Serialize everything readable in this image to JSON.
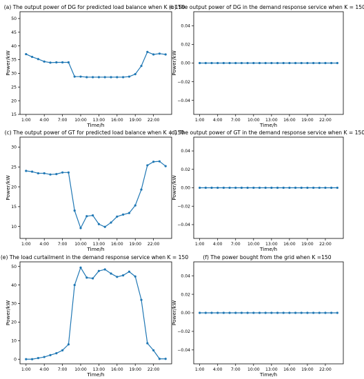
{
  "chart_data": [
    {
      "type": "line",
      "title": "(a) The output power of DG for predicted load balance when K = 150",
      "xlabel": "Time/h",
      "ylabel": "Power/kW",
      "x": [
        1,
        2,
        3,
        4,
        5,
        6,
        7,
        8,
        9,
        10,
        11,
        12,
        13,
        14,
        15,
        16,
        17,
        18,
        19,
        20,
        21,
        22,
        23,
        24
      ],
      "x_ticks": [
        1,
        4,
        7,
        10,
        13,
        16,
        19,
        22
      ],
      "x_tick_labels": [
        "1:00",
        "4:00",
        "7:00",
        "10:00",
        "13:00",
        "16:00",
        "19:00",
        "22:00"
      ],
      "xlim": [
        0,
        25
      ],
      "ylim": [
        15,
        52.5
      ],
      "y_ticks": [
        15,
        20,
        25,
        30,
        35,
        40,
        45,
        50
      ],
      "y_tick_labels": [
        "15",
        "20",
        "25",
        "30",
        "35",
        "40",
        "45",
        "50"
      ],
      "grid": false,
      "series": [
        {
          "color": "#1f77b4",
          "values": [
            37.0,
            36.0,
            35.2,
            34.3,
            33.9,
            34.0,
            34.0,
            34.0,
            28.8,
            28.8,
            28.6,
            28.6,
            28.6,
            28.6,
            28.6,
            28.6,
            28.6,
            28.8,
            29.7,
            32.7,
            37.8,
            36.9,
            37.2,
            36.9
          ]
        }
      ]
    },
    {
      "type": "line",
      "title": "(b) The output power of DG in the demand response service when K = 150",
      "xlabel": "Time/h",
      "ylabel": "Power/kW",
      "x": [
        1,
        2,
        3,
        4,
        5,
        6,
        7,
        8,
        9,
        10,
        11,
        12,
        13,
        14,
        15,
        16,
        17,
        18,
        19,
        20,
        21,
        22,
        23,
        24
      ],
      "x_ticks": [
        1,
        4,
        7,
        10,
        13,
        16,
        19,
        22
      ],
      "x_tick_labels": [
        "1:00",
        "4:00",
        "7:00",
        "10:00",
        "13:00",
        "16:00",
        "19:00",
        "22:00"
      ],
      "xlim": [
        0,
        25
      ],
      "ylim": [
        -0.055,
        0.055
      ],
      "y_ticks": [
        -0.04,
        -0.02,
        0,
        0.02,
        0.04
      ],
      "y_tick_labels": [
        "−0.04",
        "−0.02",
        "0.00",
        "0.02",
        "0.04"
      ],
      "grid": false,
      "series": [
        {
          "color": "#1f77b4",
          "values": [
            0,
            0,
            0,
            0,
            0,
            0,
            0,
            0,
            0,
            0,
            0,
            0,
            0,
            0,
            0,
            0,
            0,
            0,
            0,
            0,
            0,
            0,
            0,
            0
          ]
        }
      ]
    },
    {
      "type": "line",
      "title": "(c) The output power of GT for predicted load balance when K = 150",
      "xlabel": "Time/h",
      "ylabel": "Power/kW",
      "x": [
        1,
        2,
        3,
        4,
        5,
        6,
        7,
        8,
        9,
        10,
        11,
        12,
        13,
        14,
        15,
        16,
        17,
        18,
        19,
        20,
        21,
        22,
        23,
        24
      ],
      "x_ticks": [
        1,
        4,
        7,
        10,
        13,
        16,
        19,
        22
      ],
      "x_tick_labels": [
        "1:00",
        "4:00",
        "7:00",
        "10:00",
        "13:00",
        "16:00",
        "19:00",
        "22:00"
      ],
      "xlim": [
        0,
        25
      ],
      "ylim": [
        7,
        32.5
      ],
      "y_ticks": [
        10,
        15,
        20,
        25,
        30
      ],
      "y_tick_labels": [
        "10",
        "15",
        "20",
        "25",
        "30"
      ],
      "grid": false,
      "series": [
        {
          "color": "#1f77b4",
          "values": [
            24.0,
            23.8,
            23.4,
            23.4,
            23.1,
            23.2,
            23.6,
            23.6,
            14.0,
            9.6,
            12.6,
            12.8,
            10.6,
            9.9,
            11.0,
            12.5,
            13.0,
            13.4,
            15.3,
            19.3,
            25.4,
            26.3,
            26.4,
            25.2
          ]
        }
      ]
    },
    {
      "type": "line",
      "title": "(d) The output power of GT in the demand response service when K = 150",
      "xlabel": "Time/h",
      "ylabel": "Power/kW",
      "x": [
        1,
        2,
        3,
        4,
        5,
        6,
        7,
        8,
        9,
        10,
        11,
        12,
        13,
        14,
        15,
        16,
        17,
        18,
        19,
        20,
        21,
        22,
        23,
        24
      ],
      "x_ticks": [
        1,
        4,
        7,
        10,
        13,
        16,
        19,
        22
      ],
      "x_tick_labels": [
        "1:00",
        "4:00",
        "7:00",
        "10:00",
        "13:00",
        "16:00",
        "19:00",
        "22:00"
      ],
      "xlim": [
        0,
        25
      ],
      "ylim": [
        -0.055,
        0.055
      ],
      "y_ticks": [
        -0.04,
        -0.02,
        0,
        0.02,
        0.04
      ],
      "y_tick_labels": [
        "−0.04",
        "−0.02",
        "0.00",
        "0.02",
        "0.04"
      ],
      "grid": false,
      "series": [
        {
          "color": "#1f77b4",
          "values": [
            0,
            0,
            0,
            0,
            0,
            0,
            0,
            0,
            0,
            0,
            0,
            0,
            0,
            0,
            0,
            0,
            0,
            0,
            0,
            0,
            0,
            0,
            0,
            0
          ]
        }
      ]
    },
    {
      "type": "line",
      "title": "(e) The load curtailment in the demand response service when K = 150",
      "xlabel": "Time/h",
      "ylabel": "Power/kW",
      "x": [
        1,
        2,
        3,
        4,
        5,
        6,
        7,
        8,
        9,
        10,
        11,
        12,
        13,
        14,
        15,
        16,
        17,
        18,
        19,
        20,
        21,
        22,
        23,
        24
      ],
      "x_ticks": [
        1,
        4,
        7,
        10,
        13,
        16,
        19,
        22
      ],
      "x_tick_labels": [
        "1:00",
        "4:00",
        "7:00",
        "10:00",
        "13:00",
        "16:00",
        "19:00",
        "22:00"
      ],
      "xlim": [
        0,
        25
      ],
      "ylim": [
        -2.5,
        52.5
      ],
      "y_ticks": [
        0,
        10,
        20,
        30,
        40,
        50
      ],
      "y_tick_labels": [
        "0",
        "10",
        "20",
        "30",
        "40",
        "50"
      ],
      "grid": false,
      "series": [
        {
          "color": "#1f77b4",
          "values": [
            0,
            0,
            0.6,
            1.2,
            2.2,
            3.2,
            4.8,
            8.0,
            40.0,
            49.4,
            44.0,
            43.6,
            47.6,
            48.4,
            46.2,
            44.4,
            45.2,
            47.2,
            44.6,
            32.0,
            8.6,
            4.8,
            0.2,
            0.2
          ]
        }
      ]
    },
    {
      "type": "line",
      "title": "(f) The power bought from the grid when K =150",
      "xlabel": "Time/h",
      "ylabel": "Power/kW",
      "x": [
        1,
        2,
        3,
        4,
        5,
        6,
        7,
        8,
        9,
        10,
        11,
        12,
        13,
        14,
        15,
        16,
        17,
        18,
        19,
        20,
        21,
        22,
        23,
        24
      ],
      "x_ticks": [
        1,
        4,
        7,
        10,
        13,
        16,
        19,
        22
      ],
      "x_tick_labels": [
        "1:00",
        "4:00",
        "7:00",
        "10:00",
        "13:00",
        "16:00",
        "19:00",
        "22:00"
      ],
      "xlim": [
        0,
        25
      ],
      "ylim": [
        -0.055,
        0.055
      ],
      "y_ticks": [
        -0.04,
        -0.02,
        0,
        0.02,
        0.04
      ],
      "y_tick_labels": [
        "−0.04",
        "−0.02",
        "0.00",
        "0.02",
        "0.04"
      ],
      "grid": false,
      "series": [
        {
          "color": "#1f77b4",
          "values": [
            0,
            0,
            0,
            0,
            0,
            0,
            0,
            0,
            0,
            0,
            0,
            0,
            0,
            0,
            0,
            0,
            0,
            0,
            0,
            0,
            0,
            0,
            0,
            0
          ]
        }
      ]
    }
  ]
}
